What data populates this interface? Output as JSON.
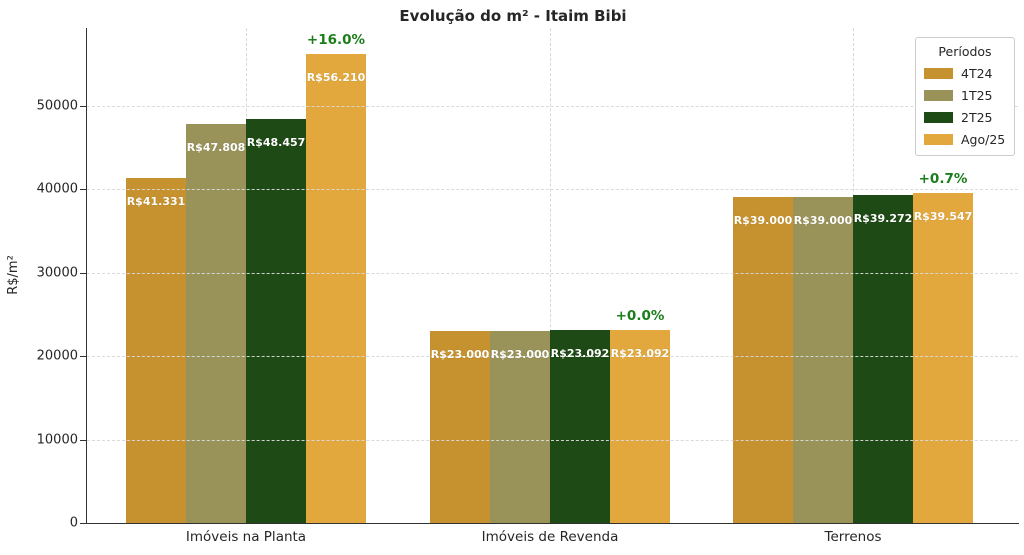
{
  "figure": {
    "background": "#ffffff",
    "text_color": "#262626",
    "annotation_color": "#1b7e1b",
    "grid_color": "#d8d8d8",
    "spine_color": "#333333"
  },
  "chart_data": {
    "type": "bar",
    "title": "Evolução do m² - Itaim Bibi",
    "xlabel": "",
    "ylabel": "R$/m²",
    "categories": [
      "Imóveis na Planta",
      "Imóveis de Revenda",
      "Terrenos"
    ],
    "series": [
      {
        "name": "4T24",
        "color": "#C6922F",
        "values": [
          41331,
          23000,
          39000
        ],
        "value_labels": [
          "R$41.331",
          "R$23.000",
          "R$39.000"
        ]
      },
      {
        "name": "1T25",
        "color": "#99935A",
        "values": [
          47808,
          23000,
          39000
        ],
        "value_labels": [
          "R$47.808",
          "R$23.000",
          "R$39.000"
        ]
      },
      {
        "name": "2T25",
        "color": "#1E4A15",
        "values": [
          48457,
          23092,
          39272
        ],
        "value_labels": [
          "R$48.457",
          "R$23.092",
          "R$39.272"
        ]
      },
      {
        "name": "Ago/25",
        "color": "#E3A83D",
        "values": [
          56210,
          23092,
          39547
        ],
        "value_labels": [
          "R$56.210",
          "R$23.092",
          "R$39.547"
        ]
      }
    ],
    "annotations": [
      {
        "category": "Imóveis na Planta",
        "series": "Ago/25",
        "text": "+16.0%",
        "color": "#1b7e1b"
      },
      {
        "category": "Imóveis de Revenda",
        "series": "Ago/25",
        "text": "+0.0%",
        "color": "#1b7e1b"
      },
      {
        "category": "Terrenos",
        "series": "Ago/25",
        "text": "+0.7%",
        "color": "#1b7e1b"
      }
    ],
    "y_ticks": [
      0,
      10000,
      20000,
      30000,
      40000,
      50000
    ],
    "ylim": [
      0,
      59300
    ],
    "grid": true,
    "grid_style": "dashed",
    "legend": {
      "title": "Períodos",
      "position": "upper right",
      "entries": [
        "4T24",
        "1T25",
        "2T25",
        "Ago/25"
      ]
    }
  }
}
